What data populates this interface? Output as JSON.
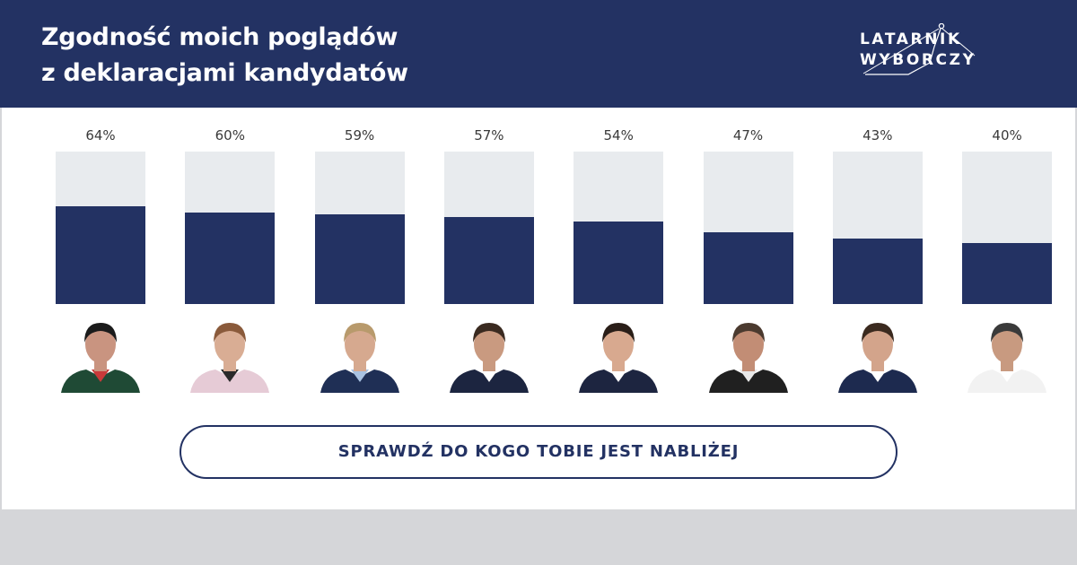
{
  "header": {
    "title_line1": "Zgodność moich poglądów",
    "title_line2": "z deklaracjami kandydatów",
    "logo_line1": "LATARNIK",
    "logo_line2": "WYBORCZY"
  },
  "colors": {
    "brand": "#233263",
    "track": "#e8ebee",
    "page_bg": "#d5d6d9"
  },
  "chart_data": {
    "type": "bar",
    "categories": [
      "",
      "",
      "",
      "",
      "",
      "",
      "",
      ""
    ],
    "values": [
      64,
      60,
      59,
      57,
      54,
      47,
      43,
      40
    ],
    "labels": [
      "64%",
      "60%",
      "59%",
      "57%",
      "54%",
      "47%",
      "43%",
      "40%"
    ],
    "ylim": [
      0,
      100
    ],
    "title": "Zgodność moich poglądów z deklaracjami kandydatów",
    "xlabel": "",
    "ylabel": "",
    "grid": false
  },
  "candidates": [
    {
      "photo": "candidate-photo",
      "jacket": "#1f4a35",
      "hair": "#1b1b1b",
      "skin": "#c99480",
      "shirt": "#c83a3a"
    },
    {
      "photo": "candidate-photo",
      "jacket": "#e6cbd6",
      "hair": "#8a5a3b",
      "skin": "#d9ad94",
      "shirt": "#2a2a2a"
    },
    {
      "photo": "candidate-photo",
      "jacket": "#1f2f55",
      "hair": "#b89a6c",
      "skin": "#d6a98f",
      "shirt": "#a9c2e2"
    },
    {
      "photo": "candidate-photo",
      "jacket": "#1c2540",
      "hair": "#3a2a20",
      "skin": "#c99a80",
      "shirt": "#ffffff"
    },
    {
      "photo": "candidate-photo",
      "jacket": "#1d2540",
      "hair": "#2a1e18",
      "skin": "#d8a98f",
      "shirt": "#ffffff"
    },
    {
      "photo": "candidate-photo",
      "jacket": "#202020",
      "hair": "#4b3a2f",
      "skin": "#c28d75",
      "shirt": "#e8e8e8"
    },
    {
      "photo": "candidate-photo",
      "jacket": "#1d2a4f",
      "hair": "#3b2a1f",
      "skin": "#d3a48b",
      "shirt": "#ffffff"
    },
    {
      "photo": "candidate-photo",
      "jacket": "#f2f2f2",
      "hair": "#3a3a3a",
      "skin": "#c89a80",
      "shirt": "#ffffff"
    }
  ],
  "cta": {
    "label": "SPRAWDŹ DO KOGO TOBIE JEST NABLIŻEJ"
  }
}
